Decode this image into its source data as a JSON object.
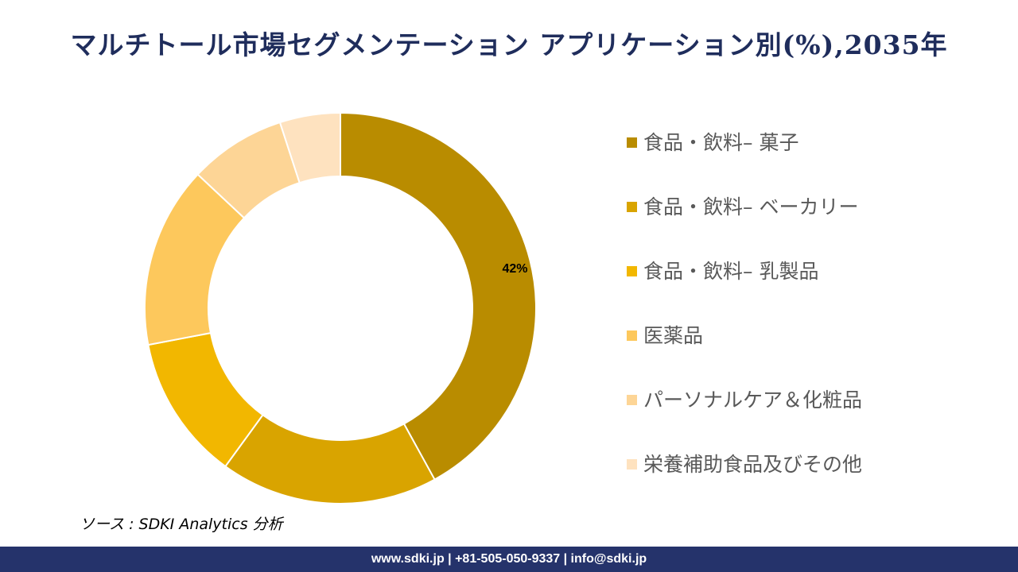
{
  "title": "マルチトール市場セグメンテーション アプリケーション別(%),2035年",
  "chart_data": {
    "type": "donut",
    "title": "マルチトール市場セグメンテーション アプリケーション別(%),2035年",
    "categories": [
      "食品・飲料– 菓子",
      "食品・飲料– ベーカリー",
      "食品・飲料– 乳製品",
      "医薬品",
      "パーソナルケア＆化粧品",
      "栄養補助食品及びその他"
    ],
    "values": [
      42,
      18,
      12,
      15,
      8,
      5
    ],
    "colors": [
      "#B98C00",
      "#D9A400",
      "#F2B700",
      "#FDC85C",
      "#FDD596",
      "#FEE2BF"
    ],
    "data_labels": [
      "42%",
      "",
      "",
      "",
      "",
      ""
    ],
    "legend_position": "right"
  },
  "source": "ソース : SDKI Analytics  分析",
  "footer": "www.sdki.jp | +81-505-050-9337 | info@sdki.jp"
}
